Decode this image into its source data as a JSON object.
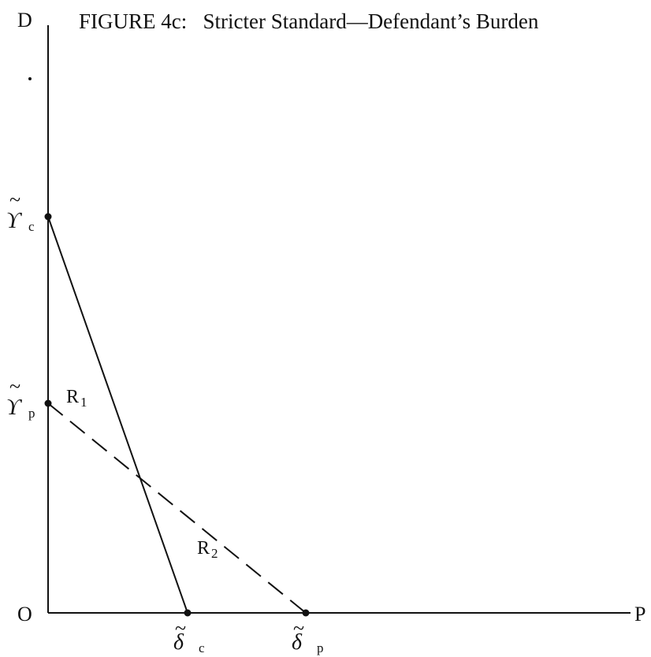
{
  "figure": {
    "title": "FIGURE 4c:   Stricter Standard—Defendant’s Burden",
    "axes": {
      "vertical_label": "D",
      "horizontal_label": "P",
      "origin_label": "O"
    },
    "intercepts": {
      "gamma_c": {
        "symbol": "ϒ",
        "tilde": "~",
        "subscript": "c"
      },
      "gamma_p": {
        "symbol": "ϒ",
        "tilde": "~",
        "subscript": "p"
      },
      "delta_c": {
        "symbol": "δ",
        "tilde": "~",
        "subscript": "c"
      },
      "delta_p": {
        "symbol": "δ",
        "tilde": "~",
        "subscript": "p"
      }
    },
    "regions": {
      "r1": {
        "letter": "R",
        "subscript": "1"
      },
      "r2": {
        "letter": "R",
        "subscript": "2"
      }
    },
    "lines": [
      {
        "from": "gamma_c",
        "to": "delta_c",
        "style": "solid"
      },
      {
        "from": "gamma_p",
        "to": "delta_p",
        "style": "dashed"
      }
    ],
    "colors": {
      "ink": "#111111",
      "background": "#ffffff"
    }
  }
}
